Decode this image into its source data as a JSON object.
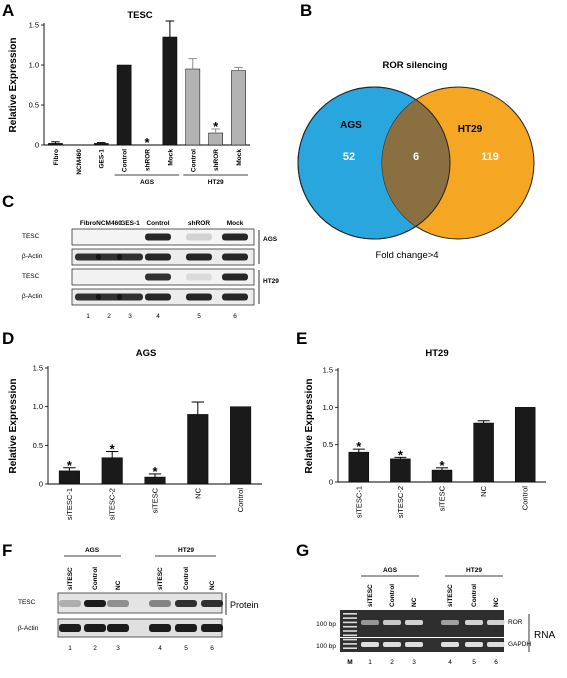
{
  "panels": {
    "A": {
      "letter": "A",
      "chart_data": {
        "type": "bar",
        "title": "TESC",
        "ylabel": "Relative Expression",
        "ylim": [
          0,
          1.5
        ],
        "yticks": [
          "0",
          "0.5",
          "1.0",
          "1.5"
        ],
        "categories": [
          "Fibro",
          "NCM460",
          "GES-1",
          "Control",
          "shROR",
          "Mock",
          "Control",
          "shROR",
          "Mock"
        ],
        "values": [
          0.02,
          0.0,
          0.02,
          1.0,
          0.0,
          1.35,
          0.95,
          0.15,
          0.93
        ],
        "errors": [
          0.02,
          0.0,
          0.01,
          0.0,
          0.0,
          0.2,
          0.13,
          0.05,
          0.04
        ],
        "colors": [
          "#1a1a1a",
          "#1a1a1a",
          "#1a1a1a",
          "#1a1a1a",
          "#1a1a1a",
          "#1a1a1a",
          "#b3b3b3",
          "#b3b3b3",
          "#b3b3b3"
        ],
        "significance": [
          "",
          "",
          "",
          "",
          "*",
          "",
          "",
          "*",
          ""
        ],
        "groups": [
          {
            "label": "AGS",
            "from": 3,
            "to": 5
          },
          {
            "label": "HT29",
            "from": 6,
            "to": 8
          }
        ]
      }
    },
    "B": {
      "letter": "B",
      "title": "ROR silencing",
      "left_label": "AGS",
      "right_label": "HT29",
      "left_only": "52",
      "overlap": "6",
      "right_only": "119",
      "footer": "Fold change>4",
      "left_color": "#2aa6df",
      "right_color": "#f5a623"
    },
    "C": {
      "letter": "C",
      "lane_headers": [
        "Fibro",
        "NCM460",
        "GES-1",
        "Control",
        "shROR",
        "Mock"
      ],
      "rows": [
        {
          "label": "TESC",
          "group": "AGS"
        },
        {
          "label": "β-Actin",
          "group": ""
        },
        {
          "label": "TESC",
          "group": "HT29"
        },
        {
          "label": "β-Actin",
          "group": ""
        }
      ],
      "lane_numbers": [
        "1",
        "2",
        "3",
        "4",
        "5",
        "6"
      ]
    },
    "D": {
      "letter": "D",
      "chart_data": {
        "type": "bar",
        "title": "AGS",
        "ylabel": "Relative Expression",
        "ylim": [
          0,
          1.5
        ],
        "yticks": [
          "0",
          "0.5",
          "1.0",
          "1.5"
        ],
        "categories": [
          "siTESC-1",
          "siTESC-2",
          "siTESC",
          "NC",
          "Control"
        ],
        "values": [
          0.17,
          0.34,
          0.09,
          0.9,
          1.0
        ],
        "errors": [
          0.04,
          0.08,
          0.04,
          0.16,
          0.0
        ],
        "significance": [
          "*",
          "*",
          "*",
          "",
          ""
        ]
      }
    },
    "E": {
      "letter": "E",
      "chart_data": {
        "type": "bar",
        "title": "HT29",
        "ylabel": "Relative Expression",
        "ylim": [
          0,
          1.5
        ],
        "yticks": [
          "0",
          "0.5",
          "1.0",
          "1.5"
        ],
        "categories": [
          "siTESC-1",
          "siTESC-2",
          "siTESC",
          "NC",
          "Control"
        ],
        "values": [
          0.4,
          0.31,
          0.16,
          0.79,
          1.0
        ],
        "errors": [
          0.04,
          0.02,
          0.03,
          0.03,
          0.0
        ],
        "significance": [
          "*",
          "*",
          "*",
          "",
          ""
        ]
      }
    },
    "F": {
      "letter": "F",
      "groups": [
        "AGS",
        "HT29"
      ],
      "lane_headers": [
        "siTESC",
        "Control",
        "NC",
        "siTESC",
        "Control",
        "NC"
      ],
      "rows": [
        "TESC",
        "β-Actin"
      ],
      "side_label": "Protein",
      "lane_numbers": [
        "1",
        "2",
        "3",
        "4",
        "5",
        "6"
      ]
    },
    "G": {
      "letter": "G",
      "groups": [
        "AGS",
        "HT29"
      ],
      "lane_headers": [
        "siTESC",
        "Control",
        "NC",
        "siTESC",
        "Control",
        "NC"
      ],
      "marker_labels": [
        "100 bp",
        "100 bp"
      ],
      "marker_lane": "M",
      "rows": [
        "ROR",
        "GAPDH"
      ],
      "side_label": "RNA",
      "lane_numbers": [
        "1",
        "2",
        "3",
        "4",
        "5",
        "6"
      ]
    }
  }
}
